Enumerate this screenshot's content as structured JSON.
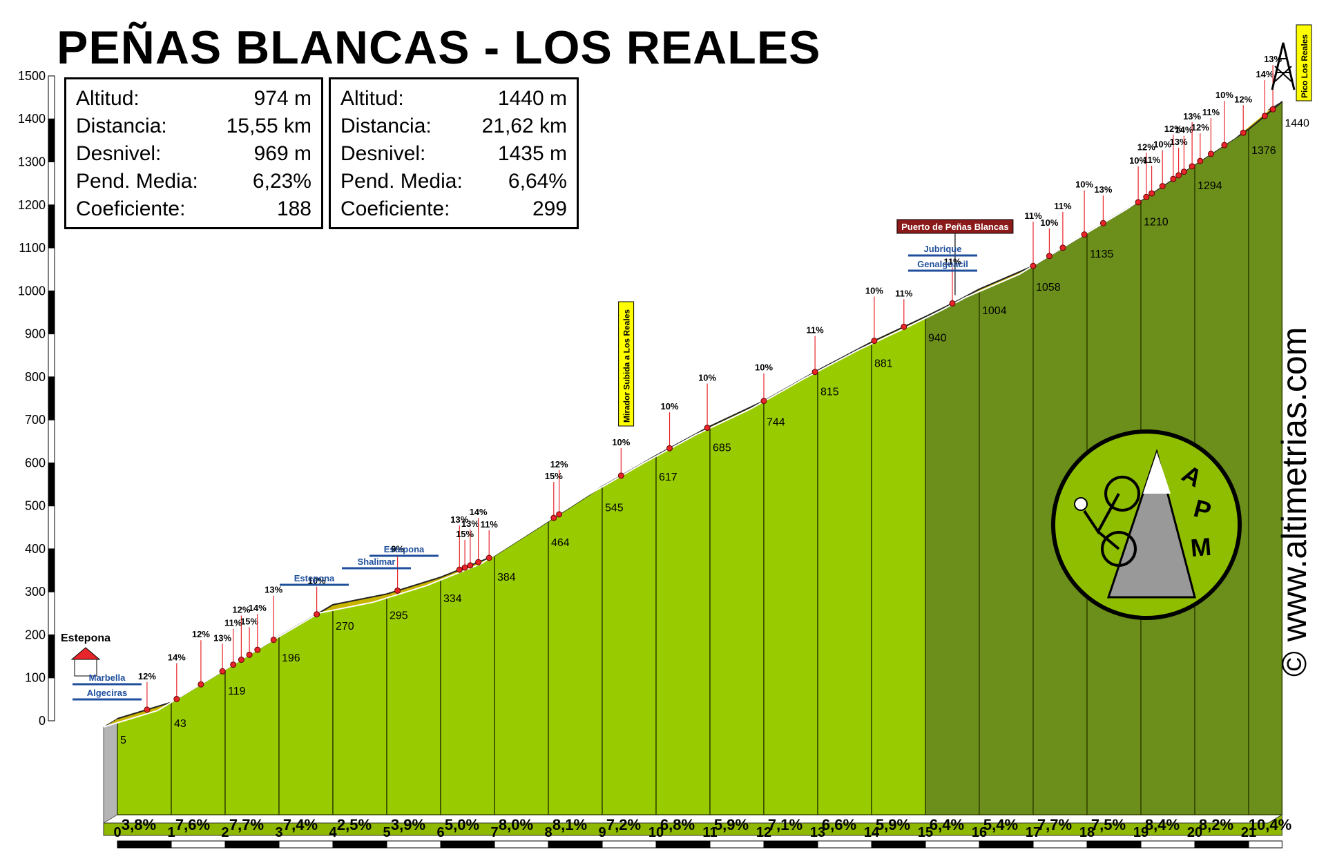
{
  "title": "PEÑAS BLANCAS - LOS REALES",
  "stat_boxes": [
    {
      "rows": [
        {
          "label": "Altitud:",
          "value": "974 m"
        },
        {
          "label": "Distancia:",
          "value": "15,55 km"
        },
        {
          "label": "Desnivel:",
          "value": "969 m"
        },
        {
          "label": "Pend. Media:",
          "value": "6,23%"
        },
        {
          "label": "Coeficiente:",
          "value": "188"
        }
      ]
    },
    {
      "rows": [
        {
          "label": "Altitud:",
          "value": "1440 m"
        },
        {
          "label": "Distancia:",
          "value": "21,62 km"
        },
        {
          "label": "Desnivel:",
          "value": "1435 m"
        },
        {
          "label": "Pend. Media:",
          "value": "6,64%"
        },
        {
          "label": "Coeficiente:",
          "value": "299"
        }
      ]
    }
  ],
  "watermark": "© www.altimetrias.com",
  "logo_text": "A P M",
  "colors": {
    "light_green": "#99cc00",
    "dark_green": "#6b8f1a",
    "road": "#c9b400",
    "red_marker": "#e8252a",
    "sign_blue": "#1f4e9c",
    "summit_sign": "#8b1a1a"
  },
  "chart_data": {
    "type": "area",
    "xlabel": "",
    "ylabel": "",
    "xlim": [
      0,
      21.62
    ],
    "ylim": [
      0,
      1500
    ],
    "x_ticks": [
      "0",
      "1",
      "2",
      "3",
      "4",
      "5",
      "6",
      "7",
      "8",
      "9",
      "10",
      "11",
      "12",
      "13",
      "14",
      "15",
      "16",
      "17",
      "18",
      "19",
      "20",
      "21"
    ],
    "y_ticks": [
      "0",
      "100",
      "200",
      "300",
      "400",
      "500",
      "600",
      "700",
      "800",
      "900",
      "1000",
      "1100",
      "1200",
      "1300",
      "1400",
      "1500"
    ],
    "profile": [
      [
        0,
        5
      ],
      [
        1,
        43
      ],
      [
        2,
        119
      ],
      [
        3,
        196
      ],
      [
        4,
        270
      ],
      [
        5,
        295
      ],
      [
        6,
        334
      ],
      [
        7,
        384
      ],
      [
        8,
        464
      ],
      [
        9,
        545
      ],
      [
        10,
        617
      ],
      [
        11,
        685
      ],
      [
        12,
        744
      ],
      [
        13,
        815
      ],
      [
        14,
        881
      ],
      [
        15,
        940
      ],
      [
        15.55,
        974
      ],
      [
        16,
        1004
      ],
      [
        17,
        1058
      ],
      [
        18,
        1135
      ],
      [
        19,
        1210
      ],
      [
        20,
        1294
      ],
      [
        21,
        1376
      ],
      [
        21.62,
        1440
      ]
    ],
    "km_altitude_labels": [
      "5",
      "43",
      "119",
      "196",
      "270",
      "295",
      "334",
      "384",
      "464",
      "545",
      "617",
      "685",
      "744",
      "815",
      "881",
      "940",
      "1004",
      "1058",
      "1135",
      "1210",
      "1294",
      "1376",
      "1440"
    ],
    "km_gradients": [
      "3,8%",
      "7,6%",
      "7,7%",
      "7,4%",
      "2,5%",
      "3,9%",
      "5,0%",
      "8,0%",
      "8,1%",
      "7,2%",
      "6,8%",
      "5,9%",
      "7,1%",
      "6,6%",
      "5,9%",
      "6,4%",
      "5,4%",
      "7,7%",
      "7,5%",
      "8,4%",
      "8,2%",
      "10,4%"
    ],
    "gradient_markers": [
      [
        0.55,
        "12%"
      ],
      [
        1.1,
        "14%"
      ],
      [
        1.55,
        "12%"
      ],
      [
        1.95,
        "13%"
      ],
      [
        2.15,
        "11%"
      ],
      [
        2.3,
        "12%"
      ],
      [
        2.45,
        "15%"
      ],
      [
        2.6,
        "14%"
      ],
      [
        2.9,
        "13%"
      ],
      [
        3.7,
        "10%"
      ],
      [
        5.2,
        "9%"
      ],
      [
        6.35,
        "13%"
      ],
      [
        6.45,
        "15%"
      ],
      [
        6.55,
        "13%"
      ],
      [
        6.7,
        "14%"
      ],
      [
        6.9,
        "11%"
      ],
      [
        8.1,
        "15%"
      ],
      [
        8.2,
        "12%"
      ],
      [
        9.35,
        "10%"
      ],
      [
        10.25,
        "10%"
      ],
      [
        10.95,
        "10%"
      ],
      [
        12.0,
        "10%"
      ],
      [
        12.95,
        "11%"
      ],
      [
        14.05,
        "10%"
      ],
      [
        14.6,
        "11%"
      ],
      [
        15.5,
        "11%"
      ],
      [
        17.0,
        "11%"
      ],
      [
        17.3,
        "10%"
      ],
      [
        17.55,
        "11%"
      ],
      [
        17.95,
        "10%"
      ],
      [
        18.3,
        "13%"
      ],
      [
        18.95,
        "10%"
      ],
      [
        19.1,
        "12%"
      ],
      [
        19.2,
        "11%"
      ],
      [
        19.4,
        "10%"
      ],
      [
        19.6,
        "12%"
      ],
      [
        19.7,
        "13%"
      ],
      [
        19.8,
        "14%"
      ],
      [
        19.95,
        "13%"
      ],
      [
        20.1,
        "12%"
      ],
      [
        20.3,
        "11%"
      ],
      [
        20.55,
        "10%"
      ],
      [
        20.9,
        "12%"
      ],
      [
        21.3,
        "14%"
      ],
      [
        21.45,
        "13%"
      ]
    ],
    "places": [
      {
        "km": 0,
        "label": "Estepona"
      },
      {
        "km": 9.7,
        "label": "Mirador Subida a Los Reales"
      },
      {
        "km": 15.55,
        "label": "Puerto de Peñas Blancas"
      },
      {
        "km": 21.62,
        "label": "Pico Los Reales"
      }
    ],
    "road_signs": [
      {
        "km": 0,
        "labels": [
          "Marbella",
          "Algeciras"
        ]
      },
      {
        "km": 3.3,
        "labels": [
          "Estepona"
        ]
      },
      {
        "km": 4.5,
        "labels": [
          "Shalimar"
        ]
      },
      {
        "km": 5.0,
        "labels": [
          "Estepona"
        ]
      },
      {
        "km": 15.55,
        "labels": [
          "Jubrique",
          "Genalguacil"
        ]
      }
    ]
  }
}
